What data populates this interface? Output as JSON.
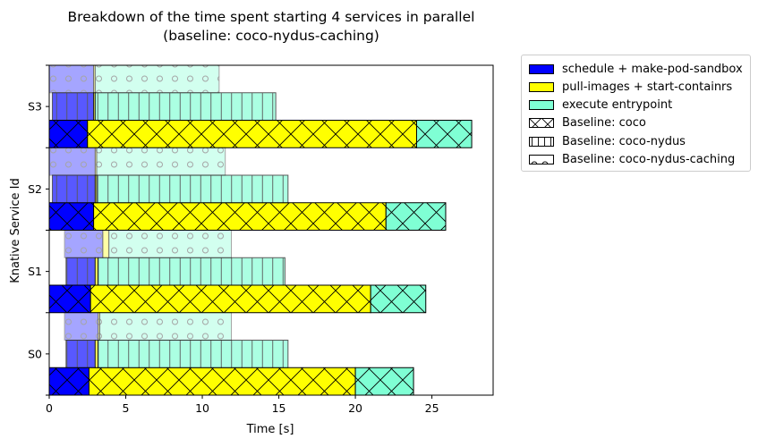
{
  "chart_data": {
    "type": "bar",
    "orientation": "horizontal",
    "stacked": true,
    "title": "Breakdown of the time spent starting 4 services in parallel",
    "subtitle": "(baseline: coco-nydus-caching)",
    "xlabel": "Time [s]",
    "ylabel": "Knative Service Id",
    "xlim": [
      0,
      29
    ],
    "xticks": [
      0,
      5,
      10,
      15,
      20,
      25
    ],
    "categories": [
      "S0",
      "S1",
      "S2",
      "S3"
    ],
    "stages": [
      {
        "name": "schedule + make-pod-sandbox",
        "color": "#0000ff"
      },
      {
        "name": "pull-images + start-containrs",
        "color": "#ffff00"
      },
      {
        "name": "execute entrypoint",
        "color": "#7fffd4"
      }
    ],
    "baselines": [
      {
        "name": "Baseline: coco",
        "hatch": "cross",
        "alpha": 1.0,
        "rows": [
          {
            "service": "S0",
            "start": 0,
            "stages": [
              2.6,
              17.4,
              3.8
            ]
          },
          {
            "service": "S1",
            "start": 0,
            "stages": [
              2.7,
              18.3,
              3.6
            ]
          },
          {
            "service": "S2",
            "start": 0,
            "stages": [
              2.9,
              19.1,
              3.9
            ]
          },
          {
            "service": "S3",
            "start": 0,
            "stages": [
              2.5,
              21.5,
              3.6
            ]
          }
        ]
      },
      {
        "name": "Baseline: coco-nydus",
        "hatch": "vertical",
        "alpha": 0.65,
        "rows": [
          {
            "service": "S0",
            "start": 1.1,
            "stages": [
              1.9,
              0.2,
              12.4
            ]
          },
          {
            "service": "S1",
            "start": 1.1,
            "stages": [
              1.9,
              0.2,
              12.2
            ]
          },
          {
            "service": "S2",
            "start": 0.2,
            "stages": [
              2.8,
              0.1,
              12.5
            ]
          },
          {
            "service": "S3",
            "start": 0.2,
            "stages": [
              2.7,
              0.1,
              11.8
            ]
          }
        ]
      },
      {
        "name": "Baseline: coco-nydus-caching",
        "hatch": "circles",
        "alpha": 0.35,
        "rows": [
          {
            "service": "S0",
            "start": 1.0,
            "stages": [
              2.2,
              0.1,
              8.6
            ]
          },
          {
            "service": "S1",
            "start": 1.0,
            "stages": [
              2.5,
              0.4,
              8.0
            ]
          },
          {
            "service": "S2",
            "start": 0.0,
            "stages": [
              3.0,
              0.1,
              8.4
            ]
          },
          {
            "service": "S3",
            "start": 0.0,
            "stages": [
              2.9,
              0.1,
              8.1
            ]
          }
        ]
      }
    ],
    "legend": {
      "placement": "outside-top-right",
      "entries": [
        {
          "label": "schedule + make-pod-sandbox",
          "kind": "color",
          "color": "#0000ff"
        },
        {
          "label": "pull-images + start-containrs",
          "kind": "color",
          "color": "#ffff00"
        },
        {
          "label": "execute entrypoint",
          "kind": "color",
          "color": "#7fffd4"
        },
        {
          "label": "Baseline: coco",
          "kind": "hatch",
          "hatch": "cross"
        },
        {
          "label": "Baseline: coco-nydus",
          "kind": "hatch",
          "hatch": "vertical"
        },
        {
          "label": "Baseline: coco-nydus-caching",
          "kind": "hatch",
          "hatch": "circles"
        }
      ]
    },
    "grid": false
  }
}
